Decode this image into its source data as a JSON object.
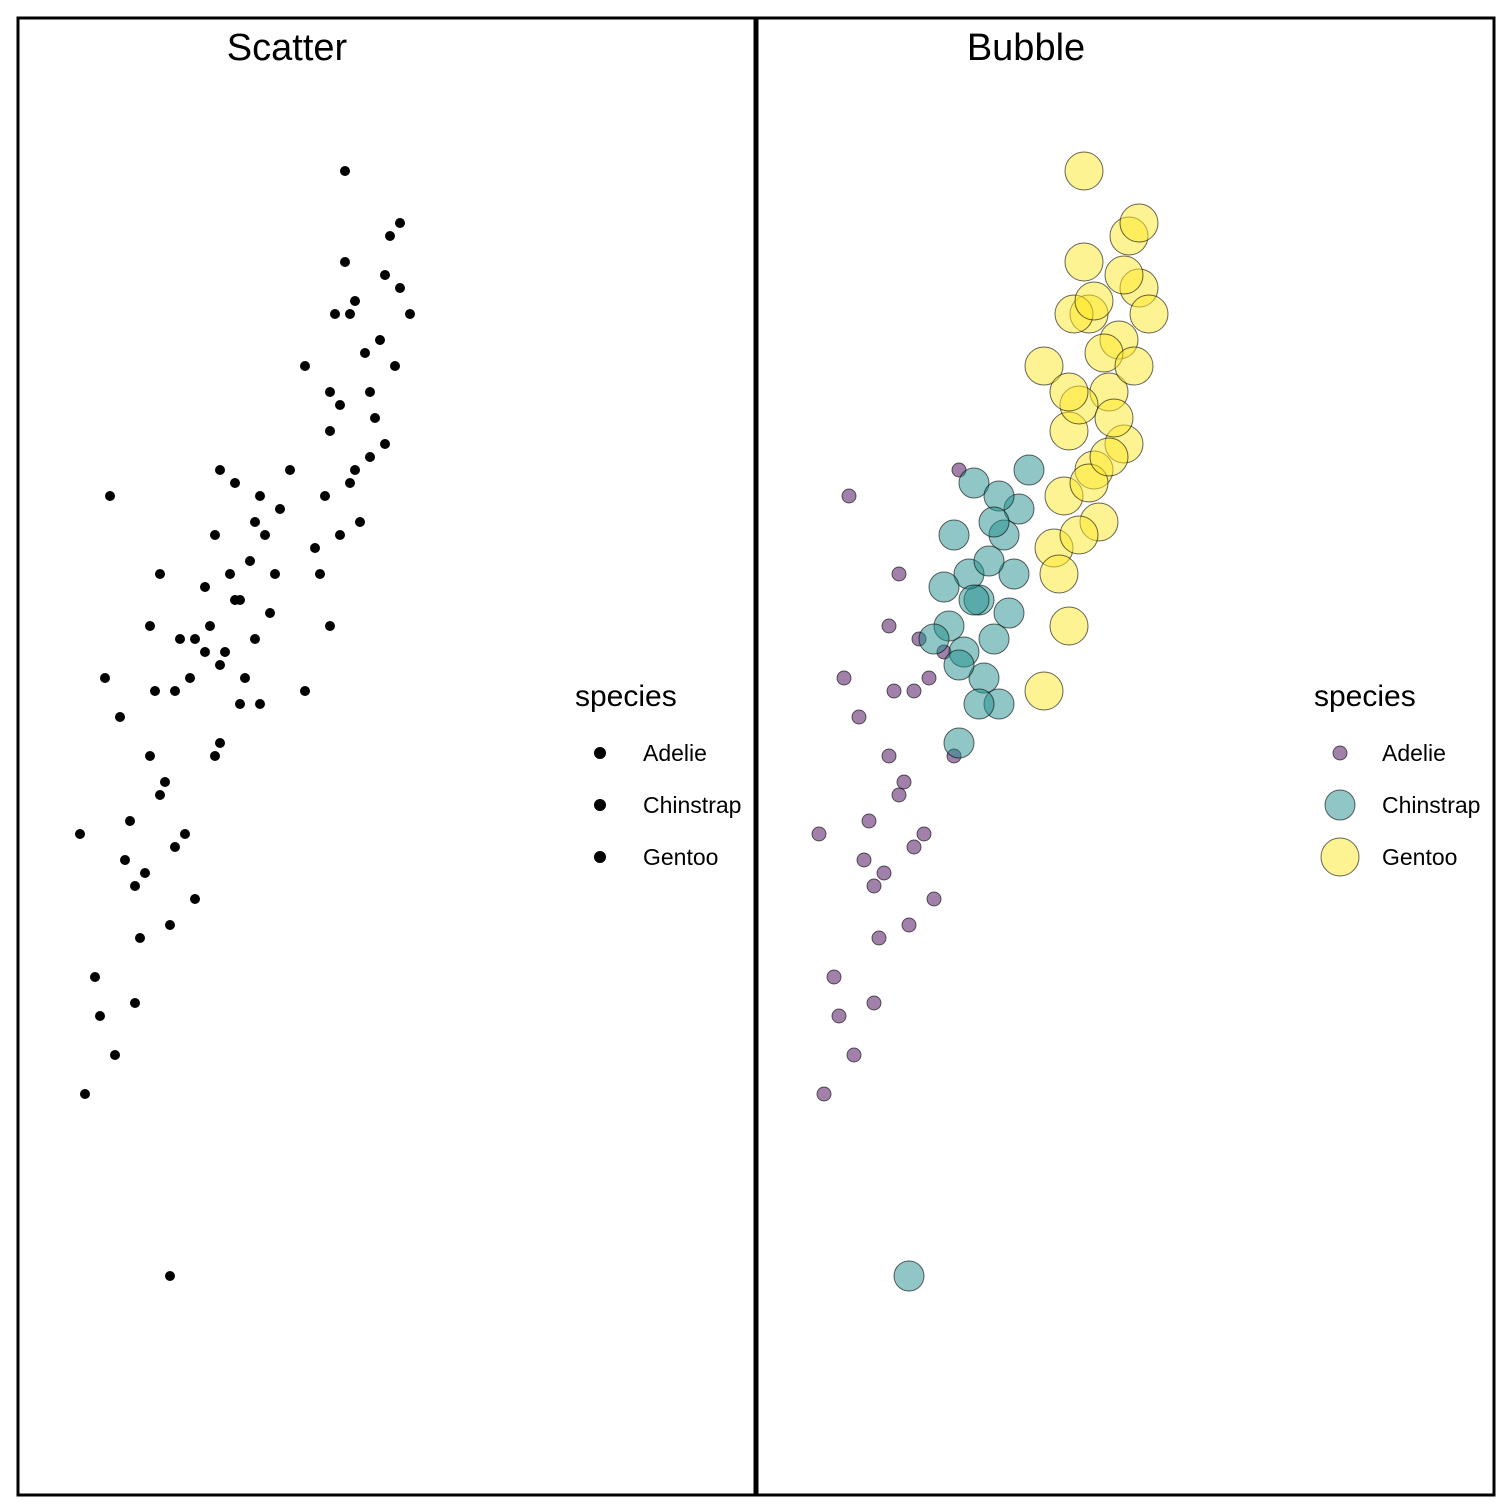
{
  "chart_data": [
    {
      "type": "scatter",
      "title": "Scatter",
      "xlabel": "",
      "ylabel": "",
      "legend": {
        "title": "species",
        "entries": [
          "Adelie",
          "Chinstrap",
          "Gentoo"
        ],
        "placement": "right"
      },
      "marker_color": "#000000",
      "xlim": [
        0,
        1
      ],
      "ylim": [
        0,
        1
      ],
      "series": [
        {
          "name": "Adelie",
          "points": [
            [
              0.3,
              0.58
            ],
            [
              0.23,
              0.57
            ],
            [
              0.14,
              0.72
            ],
            [
              0.27,
              0.57
            ],
            [
              0.21,
              0.43
            ],
            [
              0.35,
              0.52
            ],
            [
              0.22,
              0.62
            ],
            [
              0.18,
              0.47
            ],
            [
              0.19,
              0.42
            ],
            [
              0.12,
              0.32
            ],
            [
              0.33,
              0.6
            ],
            [
              0.26,
              0.39
            ],
            [
              0.25,
              0.5
            ],
            [
              0.16,
              0.55
            ],
            [
              0.28,
              0.61
            ],
            [
              0.2,
              0.38
            ],
            [
              0.11,
              0.35
            ],
            [
              0.31,
              0.41
            ],
            [
              0.17,
              0.44
            ],
            [
              0.24,
              0.49
            ],
            [
              0.09,
              0.26
            ],
            [
              0.36,
              0.74
            ],
            [
              0.15,
              0.29
            ],
            [
              0.29,
              0.46
            ],
            [
              0.22,
              0.52
            ],
            [
              0.13,
              0.58
            ],
            [
              0.27,
              0.45
            ],
            [
              0.19,
              0.33
            ],
            [
              0.24,
              0.66
            ],
            [
              0.08,
              0.46
            ]
          ]
        },
        {
          "name": "Chinstrap",
          "points": [
            [
              0.34,
              0.62
            ],
            [
              0.4,
              0.64
            ],
            [
              0.45,
              0.69
            ],
            [
              0.38,
              0.66
            ],
            [
              0.43,
              0.61
            ],
            [
              0.36,
              0.53
            ],
            [
              0.41,
              0.58
            ],
            [
              0.47,
              0.66
            ],
            [
              0.39,
              0.73
            ],
            [
              0.44,
              0.56
            ],
            [
              0.33,
              0.65
            ],
            [
              0.48,
              0.71
            ],
            [
              0.42,
              0.67
            ],
            [
              0.37,
              0.6
            ],
            [
              0.46,
              0.63
            ],
            [
              0.35,
              0.69
            ],
            [
              0.4,
              0.56
            ],
            [
              0.44,
              0.72
            ],
            [
              0.31,
              0.61
            ],
            [
              0.5,
              0.74
            ],
            [
              0.39,
              0.64
            ],
            [
              0.43,
              0.7
            ],
            [
              0.36,
              0.59
            ],
            [
              0.26,
              0.12
            ]
          ]
        },
        {
          "name": "Gentoo",
          "points": [
            [
              0.53,
              0.82
            ],
            [
              0.58,
              0.77
            ],
            [
              0.62,
              0.86
            ],
            [
              0.66,
              0.8
            ],
            [
              0.7,
              0.92
            ],
            [
              0.57,
              0.72
            ],
            [
              0.63,
              0.74
            ],
            [
              0.68,
              0.84
            ],
            [
              0.61,
              0.9
            ],
            [
              0.55,
              0.68
            ],
            [
              0.72,
              0.88
            ],
            [
              0.6,
              0.79
            ],
            [
              0.65,
              0.83
            ],
            [
              0.69,
              0.76
            ],
            [
              0.59,
              0.86
            ],
            [
              0.64,
              0.7
            ],
            [
              0.71,
              0.82
            ],
            [
              0.56,
              0.66
            ],
            [
              0.67,
              0.78
            ],
            [
              0.62,
              0.73
            ],
            [
              0.74,
              0.86
            ],
            [
              0.58,
              0.8
            ],
            [
              0.66,
              0.75
            ],
            [
              0.6,
              0.69
            ],
            [
              0.53,
              0.57
            ],
            [
              0.69,
              0.89
            ],
            [
              0.63,
              0.87
            ],
            [
              0.72,
              0.93
            ],
            [
              0.61,
              0.97
            ],
            [
              0.58,
              0.62
            ]
          ]
        }
      ]
    },
    {
      "type": "scatter",
      "title": "Bubble",
      "xlabel": "",
      "ylabel": "",
      "legend": {
        "title": "species",
        "entries": [
          "Adelie",
          "Chinstrap",
          "Gentoo"
        ],
        "placement": "right"
      },
      "xlim": [
        0,
        1
      ],
      "ylim": [
        0,
        1
      ],
      "series": [
        {
          "name": "Adelie",
          "color": "#440154",
          "points": [
            [
              0.3,
              0.58
            ],
            [
              0.23,
              0.57
            ],
            [
              0.14,
              0.72
            ],
            [
              0.27,
              0.57
            ],
            [
              0.21,
              0.43
            ],
            [
              0.35,
              0.52
            ],
            [
              0.22,
              0.62
            ],
            [
              0.18,
              0.47
            ],
            [
              0.19,
              0.42
            ],
            [
              0.12,
              0.32
            ],
            [
              0.33,
              0.6
            ],
            [
              0.26,
              0.39
            ],
            [
              0.25,
              0.5
            ],
            [
              0.16,
              0.55
            ],
            [
              0.28,
              0.61
            ],
            [
              0.2,
              0.38
            ],
            [
              0.11,
              0.35
            ],
            [
              0.31,
              0.41
            ],
            [
              0.17,
              0.44
            ],
            [
              0.24,
              0.49
            ],
            [
              0.09,
              0.26
            ],
            [
              0.36,
              0.74
            ],
            [
              0.15,
              0.29
            ],
            [
              0.29,
              0.46
            ],
            [
              0.22,
              0.52
            ],
            [
              0.13,
              0.58
            ],
            [
              0.27,
              0.45
            ],
            [
              0.19,
              0.33
            ],
            [
              0.24,
              0.66
            ],
            [
              0.08,
              0.46
            ]
          ]
        },
        {
          "name": "Chinstrap",
          "color": "#21908d",
          "points": [
            [
              0.34,
              0.62
            ],
            [
              0.4,
              0.64
            ],
            [
              0.45,
              0.69
            ],
            [
              0.38,
              0.66
            ],
            [
              0.43,
              0.61
            ],
            [
              0.36,
              0.53
            ],
            [
              0.41,
              0.58
            ],
            [
              0.47,
              0.66
            ],
            [
              0.39,
              0.73
            ],
            [
              0.44,
              0.56
            ],
            [
              0.33,
              0.65
            ],
            [
              0.48,
              0.71
            ],
            [
              0.42,
              0.67
            ],
            [
              0.37,
              0.6
            ],
            [
              0.46,
              0.63
            ],
            [
              0.35,
              0.69
            ],
            [
              0.4,
              0.56
            ],
            [
              0.44,
              0.72
            ],
            [
              0.31,
              0.61
            ],
            [
              0.5,
              0.74
            ],
            [
              0.39,
              0.64
            ],
            [
              0.43,
              0.7
            ],
            [
              0.36,
              0.59
            ],
            [
              0.26,
              0.12
            ]
          ]
        },
        {
          "name": "Gentoo",
          "color": "#fde725",
          "points": [
            [
              0.53,
              0.82
            ],
            [
              0.58,
              0.77
            ],
            [
              0.62,
              0.86
            ],
            [
              0.66,
              0.8
            ],
            [
              0.7,
              0.92
            ],
            [
              0.57,
              0.72
            ],
            [
              0.63,
              0.74
            ],
            [
              0.68,
              0.84
            ],
            [
              0.61,
              0.9
            ],
            [
              0.55,
              0.68
            ],
            [
              0.72,
              0.88
            ],
            [
              0.6,
              0.79
            ],
            [
              0.65,
              0.83
            ],
            [
              0.69,
              0.76
            ],
            [
              0.59,
              0.86
            ],
            [
              0.64,
              0.7
            ],
            [
              0.71,
              0.82
            ],
            [
              0.56,
              0.66
            ],
            [
              0.67,
              0.78
            ],
            [
              0.62,
              0.73
            ],
            [
              0.74,
              0.86
            ],
            [
              0.58,
              0.8
            ],
            [
              0.66,
              0.75
            ],
            [
              0.6,
              0.69
            ],
            [
              0.53,
              0.57
            ],
            [
              0.69,
              0.89
            ],
            [
              0.63,
              0.87
            ],
            [
              0.72,
              0.93
            ],
            [
              0.61,
              0.97
            ],
            [
              0.58,
              0.62
            ]
          ]
        }
      ]
    }
  ]
}
